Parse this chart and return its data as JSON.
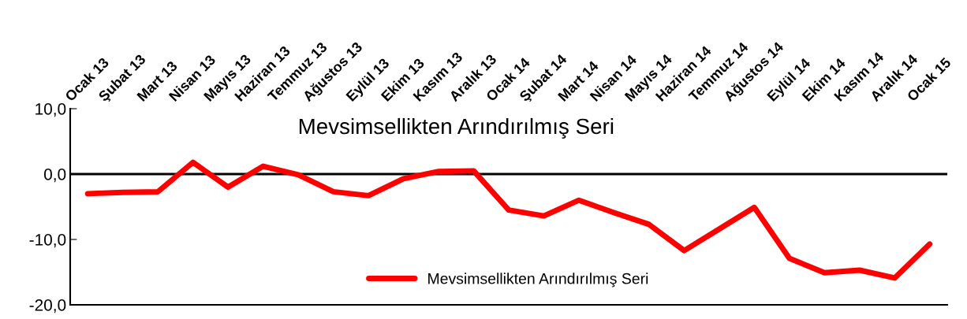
{
  "chart_data": {
    "type": "line",
    "title": "Mevsimsellikten Arındırılmış Seri",
    "categories": [
      "Ocak 13",
      "Şubat 13",
      "Mart 13",
      "Nisan 13",
      "Mayıs 13",
      "Haziran 13",
      "Temmuz 13",
      "Ağustos 13",
      "Eylül 13",
      "Ekim 13",
      "Kasım 13",
      "Aralık 13",
      "Ocak 14",
      "Şubat 14",
      "Mart 14",
      "Nisan 14",
      "Mayıs 14",
      "Haziran 14",
      "Temmuz 14",
      "Ağustos 14",
      "Eylül 14",
      "Ekim 14",
      "Kasım 14",
      "Aralık 14",
      "Ocak 15"
    ],
    "series": [
      {
        "name": "Mevsimsellikten Arındırılmış Seri",
        "color": "#ff0000",
        "values": [
          -3.0,
          -2.8,
          -2.7,
          1.8,
          -2.0,
          1.2,
          -0.1,
          -2.7,
          -3.3,
          -0.7,
          0.4,
          0.5,
          -5.5,
          -6.4,
          -4.0,
          -5.9,
          -7.7,
          -11.7,
          -8.4,
          -5.1,
          -12.9,
          -15.1,
          -14.7,
          -15.9,
          -10.7
        ]
      }
    ],
    "ylim": [
      -20,
      10
    ],
    "yticks": [
      {
        "value": -20,
        "label": "-20,0"
      },
      {
        "value": -10,
        "label": "-10,0"
      },
      {
        "value": 0,
        "label": "0,0"
      },
      {
        "value": 10,
        "label": "10,0"
      }
    ],
    "ref_lines": [
      {
        "axis": "y",
        "value": 0,
        "color": "#000000"
      }
    ],
    "grid": false,
    "legend": "bottom",
    "marker": "none",
    "line_style": "solid"
  }
}
